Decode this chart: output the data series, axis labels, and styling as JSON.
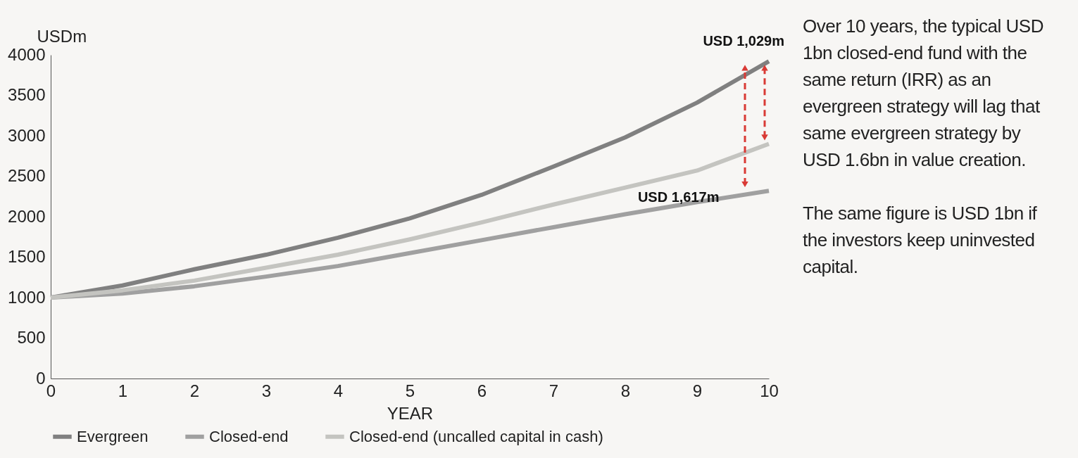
{
  "chart_data": {
    "type": "line",
    "xlabel": "YEAR",
    "ylabel": "USDm",
    "x": [
      0,
      1,
      2,
      3,
      4,
      5,
      6,
      7,
      8,
      9,
      10
    ],
    "xlim": [
      0,
      10
    ],
    "xticks": [
      0,
      1,
      2,
      3,
      4,
      5,
      6,
      7,
      8,
      9,
      10
    ],
    "ylim": [
      0,
      4000
    ],
    "yticks": [
      0,
      500,
      1000,
      1500,
      2000,
      2500,
      3000,
      3500,
      4000
    ],
    "grid": false,
    "legend": "bottom",
    "marker": "none",
    "line_style": "solid",
    "series": [
      {
        "name": "Evergreen",
        "color": "#808080",
        "values": [
          1000,
          1150,
          1350,
          1530,
          1740,
          1980,
          2270,
          2620,
          2980,
          3410,
          3920
        ]
      },
      {
        "name": "Closed-end",
        "color": "#a0a0a0",
        "values": [
          1000,
          1050,
          1140,
          1260,
          1390,
          1550,
          1710,
          1870,
          2030,
          2180,
          2320
        ]
      },
      {
        "name": "Closed-end (uncalled capital in cash)",
        "color": "#c4c4c0",
        "values": [
          1000,
          1090,
          1210,
          1370,
          1530,
          1720,
          1930,
          2150,
          2360,
          2570,
          2900
        ]
      }
    ],
    "annotations": [
      {
        "text": "USD 1,029m",
        "x": 10,
        "y": 3920
      },
      {
        "text": "USD 1,617m",
        "x": 9.75,
        "y": 2320
      },
      "Over 10 years, the typical USD 1bn closed-end fund with the same return (IRR) as an evergreen strategy will lag that same evergreen strategy by USD 1.6bn in value creation.",
      "The same figure is USD 1bn if the investors keep uninvested capital."
    ]
  }
}
